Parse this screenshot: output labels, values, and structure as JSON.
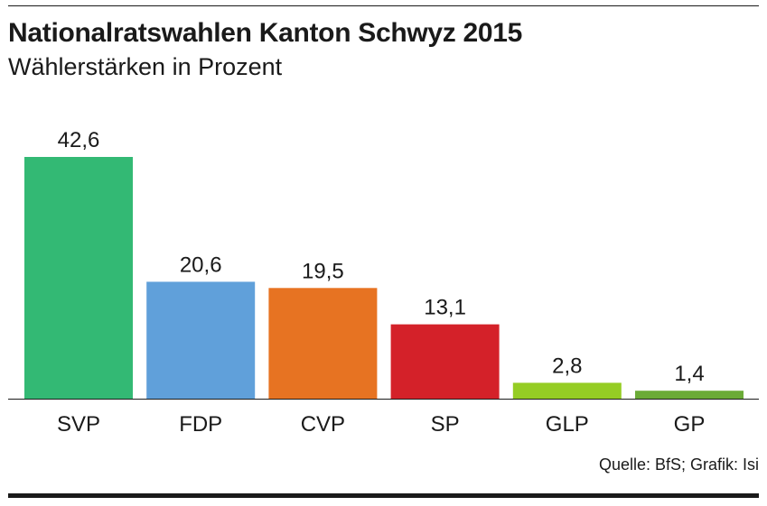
{
  "header": {
    "title": "Nationalratswahlen Kanton Schwyz 2015",
    "subtitle": "Wählerstärken in Prozent"
  },
  "footer": {
    "source": "Quelle: BfS; Grafik: Isi"
  },
  "chart_data": {
    "type": "bar",
    "title": "Nationalratswahlen Kanton Schwyz 2015",
    "subtitle": "Wählerstärken in Prozent",
    "categories": [
      "SVP",
      "FDP",
      "CVP",
      "SP",
      "GLP",
      "GP"
    ],
    "values": [
      42.6,
      20.6,
      19.5,
      13.1,
      2.8,
      1.4
    ],
    "value_labels": [
      "42,6",
      "20,6",
      "19,5",
      "13,1",
      "2,8",
      "1,4"
    ],
    "colors": [
      "#33b974",
      "#60a0da",
      "#e77322",
      "#d42129",
      "#95cd24",
      "#6bab37"
    ],
    "xlabel": "",
    "ylabel": "",
    "ylim": [
      0,
      42.6
    ],
    "grid": false,
    "legend": "none"
  }
}
